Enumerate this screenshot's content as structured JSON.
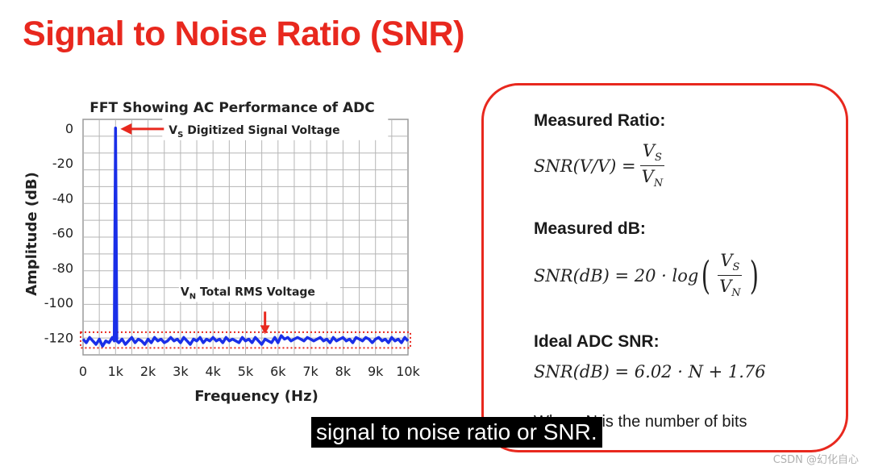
{
  "slide": {
    "title": "Signal to Noise Ratio (SNR)",
    "title_color": "#e8281e"
  },
  "chart_data": {
    "type": "line",
    "title": "FFT Showing AC Performance of ADC",
    "xlabel": "Frequency (Hz)",
    "ylabel": "Amplitude (dB)",
    "xlim": [
      0,
      10000
    ],
    "ylim": [
      -130,
      5
    ],
    "x_ticks": [
      0,
      1000,
      2000,
      3000,
      4000,
      5000,
      6000,
      7000,
      8000,
      9000,
      10000
    ],
    "x_tick_labels": [
      "0",
      "1k",
      "2k",
      "3k",
      "4k",
      "5k",
      "6k",
      "7k",
      "8k",
      "9k",
      "10k"
    ],
    "y_ticks": [
      0,
      -20,
      -40,
      -60,
      -80,
      -100,
      -120
    ],
    "y_tick_labels": [
      "0",
      "-20",
      "-40",
      "-60",
      "-80",
      "-100",
      "-120"
    ],
    "grid": true,
    "series_color": "#1a2fe8",
    "series": [
      {
        "x": [
          0,
          100,
          200,
          300,
          400,
          500,
          600,
          700,
          800,
          900,
          960,
          980,
          1000,
          1020,
          1040,
          1100,
          1200,
          1300,
          1400,
          1500,
          1600,
          1700,
          1800,
          1900,
          2000,
          2100,
          2200,
          2300,
          2400,
          2500,
          2600,
          2700,
          2800,
          2900,
          3000,
          3100,
          3200,
          3300,
          3400,
          3500,
          3600,
          3700,
          3800,
          3900,
          4000,
          4100,
          4200,
          4300,
          4400,
          4500,
          4600,
          4700,
          4800,
          4900,
          5000,
          5100,
          5200,
          5300,
          5400,
          5500,
          5600,
          5700,
          5800,
          5900,
          6000,
          6100,
          6200,
          6300,
          6400,
          6500,
          6600,
          6700,
          6800,
          6900,
          7000,
          7100,
          7200,
          7300,
          7400,
          7500,
          7600,
          7700,
          7800,
          7900,
          8000,
          8100,
          8200,
          8300,
          8400,
          8500,
          8600,
          8700,
          8800,
          8900,
          9000,
          9100,
          9200,
          9300,
          9400,
          9500,
          9600,
          9700,
          9800,
          9900,
          10000
        ],
        "y": [
          -121,
          -123,
          -120,
          -122,
          -124,
          -121,
          -125,
          -122,
          -123,
          -120,
          -122,
          -60,
          0,
          -60,
          -122,
          -123,
          -121,
          -124,
          -122,
          -120,
          -123,
          -121,
          -122,
          -124,
          -121,
          -123,
          -120,
          -122,
          -121,
          -123,
          -122,
          -120,
          -122,
          -121,
          -123,
          -120,
          -122,
          -124,
          -121,
          -122,
          -120,
          -123,
          -121,
          -122,
          -120,
          -122,
          -121,
          -123,
          -120,
          -122,
          -121,
          -122,
          -123,
          -120,
          -122,
          -121,
          -123,
          -120,
          -122,
          -124,
          -121,
          -122,
          -123,
          -120,
          -123,
          -119,
          -121,
          -120,
          -122,
          -121,
          -120,
          -121,
          -122,
          -120,
          -121,
          -122,
          -121,
          -120,
          -122,
          -121,
          -123,
          -120,
          -122,
          -121,
          -120,
          -122,
          -121,
          -123,
          -120,
          -121,
          -122,
          -120,
          -121,
          -123,
          -121,
          -120,
          -122,
          -121,
          -123,
          -120,
          -122,
          -121,
          -123,
          -120,
          -122
        ]
      }
    ],
    "annotations": [
      {
        "label_main": "V",
        "label_sub": "S",
        "text": " Digitized Signal Voltage",
        "x": 1000,
        "y": 0
      },
      {
        "label_main": "V",
        "label_sub": "N",
        "text": " Total RMS Voltage",
        "x": 5600,
        "y": -120
      }
    ],
    "noise_box": {
      "x_range": [
        0,
        10000
      ],
      "y_range": [
        -126,
        -117
      ],
      "color": "#e8281e",
      "style": "dotted"
    }
  },
  "formulas": {
    "measured_ratio": {
      "heading": "Measured Ratio:",
      "lhs": "SNR(V/V) =",
      "numerator_main": "V",
      "numerator_sub": "S",
      "denominator_main": "V",
      "denominator_sub": "N"
    },
    "measured_db": {
      "heading": "Measured dB:",
      "lhs": "SNR(dB) = 20 · log",
      "numerator_main": "V",
      "numerator_sub": "S",
      "denominator_main": "V",
      "denominator_sub": "N"
    },
    "ideal": {
      "heading": "Ideal ADC SNR:",
      "expression": "SNR(dB) = 6.02 · N + 1.76"
    },
    "note": "Where N is the number of bits",
    "box_color": "#e8281e"
  },
  "caption": {
    "text": "signal to noise ratio or SNR."
  },
  "watermark": {
    "text": "CSDN @幻化自心"
  }
}
